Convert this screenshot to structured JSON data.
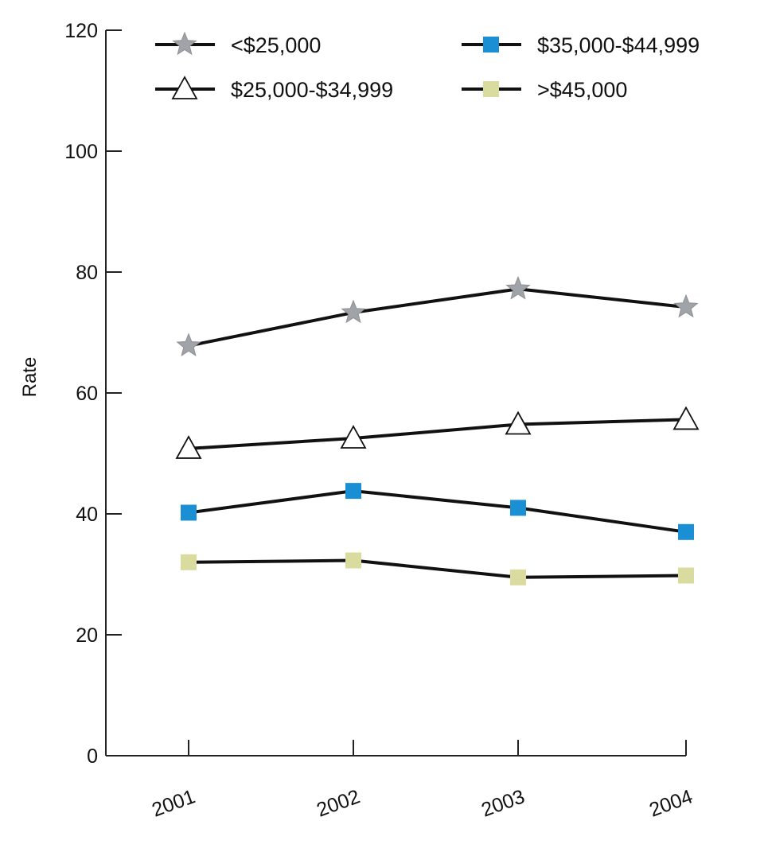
{
  "chart_data": {
    "type": "line",
    "title": "",
    "xlabel": "",
    "ylabel": "Rate",
    "ylim": [
      0,
      120
    ],
    "yticks": [
      0,
      20,
      40,
      60,
      80,
      100,
      120
    ],
    "categories": [
      "2001",
      "2002",
      "2003",
      "2004"
    ],
    "grid": false,
    "legend_position": "top",
    "series": [
      {
        "name": "<$25,000",
        "marker": "star",
        "color": "#a0a3a8",
        "values": [
          67.8,
          73.3,
          77.2,
          74.2
        ]
      },
      {
        "name": "$25,000-$34,999",
        "marker": "triangle",
        "color": "#ffffff",
        "values": [
          50.8,
          52.5,
          54.8,
          55.6
        ]
      },
      {
        "name": "$35,000-$44,999",
        "marker": "square",
        "color": "#1a8fd4",
        "values": [
          40.2,
          43.8,
          41.0,
          37.0
        ]
      },
      {
        "name": ">$45,000",
        "marker": "square",
        "color": "#d9dc9e",
        "values": [
          32.0,
          32.3,
          29.5,
          29.8
        ]
      }
    ]
  }
}
